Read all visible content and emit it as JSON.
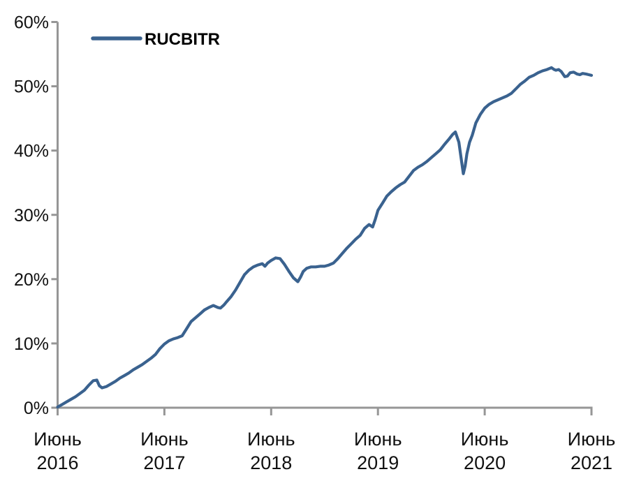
{
  "chart_data": {
    "type": "line",
    "title": "",
    "legend": {
      "label": "RUCBITR",
      "position": "top-left-inside"
    },
    "axis_color": "#969696",
    "grid": false,
    "x_axis": {
      "unit": "months since June 2016",
      "range_months": [
        0,
        60
      ],
      "ticks": [
        {
          "month": 0,
          "label_line1": "Июнь",
          "label_line2": "2016"
        },
        {
          "month": 12,
          "label_line1": "Июнь",
          "label_line2": "2017"
        },
        {
          "month": 24,
          "label_line1": "Июнь",
          "label_line2": "2018"
        },
        {
          "month": 36,
          "label_line1": "Июнь",
          "label_line2": "2019"
        },
        {
          "month": 48,
          "label_line1": "Июнь",
          "label_line2": "2020"
        },
        {
          "month": 60,
          "label_line1": "Июнь",
          "label_line2": "2021"
        }
      ]
    },
    "y_axis": {
      "tick_labels": [
        "0%",
        "10%",
        "20%",
        "30%",
        "40%",
        "50%",
        "60%"
      ],
      "tick_values": [
        0,
        10,
        20,
        30,
        40,
        50,
        60
      ],
      "range": [
        0,
        60
      ]
    },
    "series": [
      {
        "name": "RUCBITR",
        "color": "#3A628F",
        "points": [
          [
            0,
            0.1
          ],
          [
            0.5,
            0.5
          ],
          [
            1,
            0.9
          ],
          [
            1.5,
            1.3
          ],
          [
            2,
            1.7
          ],
          [
            2.5,
            2.2
          ],
          [
            3,
            2.7
          ],
          [
            3.5,
            3.5
          ],
          [
            4,
            4.2
          ],
          [
            4.4,
            4.3
          ],
          [
            4.7,
            3.4
          ],
          [
            5,
            3.1
          ],
          [
            5.5,
            3.3
          ],
          [
            6,
            3.7
          ],
          [
            6.5,
            4.1
          ],
          [
            7,
            4.6
          ],
          [
            7.5,
            5.0
          ],
          [
            8,
            5.4
          ],
          [
            8.5,
            5.9
          ],
          [
            9,
            6.3
          ],
          [
            9.5,
            6.7
          ],
          [
            10,
            7.2
          ],
          [
            10.5,
            7.7
          ],
          [
            11,
            8.3
          ],
          [
            11.5,
            9.2
          ],
          [
            12,
            9.9
          ],
          [
            12.5,
            10.4
          ],
          [
            13,
            10.7
          ],
          [
            13.5,
            10.9
          ],
          [
            14,
            11.2
          ],
          [
            14.5,
            12.3
          ],
          [
            15,
            13.4
          ],
          [
            15.5,
            14.0
          ],
          [
            16,
            14.6
          ],
          [
            16.5,
            15.2
          ],
          [
            17,
            15.6
          ],
          [
            17.5,
            15.9
          ],
          [
            18,
            15.6
          ],
          [
            18.3,
            15.5
          ],
          [
            18.7,
            16.0
          ],
          [
            19,
            16.5
          ],
          [
            19.5,
            17.3
          ],
          [
            20,
            18.3
          ],
          [
            20.5,
            19.5
          ],
          [
            21,
            20.7
          ],
          [
            21.5,
            21.4
          ],
          [
            22,
            21.9
          ],
          [
            22.5,
            22.2
          ],
          [
            23,
            22.4
          ],
          [
            23.3,
            22.0
          ],
          [
            23.6,
            22.5
          ],
          [
            24,
            22.9
          ],
          [
            24.5,
            23.3
          ],
          [
            25,
            23.2
          ],
          [
            25.5,
            22.3
          ],
          [
            26,
            21.2
          ],
          [
            26.5,
            20.2
          ],
          [
            27,
            19.6
          ],
          [
            27.3,
            20.3
          ],
          [
            27.6,
            21.2
          ],
          [
            28,
            21.7
          ],
          [
            28.5,
            21.9
          ],
          [
            29,
            21.9
          ],
          [
            29.5,
            22.0
          ],
          [
            30,
            22.0
          ],
          [
            30.5,
            22.2
          ],
          [
            31,
            22.5
          ],
          [
            31.5,
            23.2
          ],
          [
            32,
            24.0
          ],
          [
            32.5,
            24.8
          ],
          [
            33,
            25.5
          ],
          [
            33.5,
            26.2
          ],
          [
            34,
            26.8
          ],
          [
            34.5,
            27.9
          ],
          [
            35,
            28.5
          ],
          [
            35.4,
            28.1
          ],
          [
            35.7,
            29.3
          ],
          [
            36,
            30.7
          ],
          [
            36.5,
            31.8
          ],
          [
            37,
            32.9
          ],
          [
            37.5,
            33.6
          ],
          [
            38,
            34.2
          ],
          [
            38.5,
            34.7
          ],
          [
            39,
            35.1
          ],
          [
            39.5,
            36.0
          ],
          [
            40,
            36.9
          ],
          [
            40.5,
            37.4
          ],
          [
            41,
            37.8
          ],
          [
            41.5,
            38.3
          ],
          [
            42,
            38.9
          ],
          [
            42.5,
            39.5
          ],
          [
            43,
            40.1
          ],
          [
            43.5,
            41.0
          ],
          [
            44,
            41.8
          ],
          [
            44.4,
            42.5
          ],
          [
            44.7,
            42.9
          ],
          [
            45.1,
            41.3
          ],
          [
            45.4,
            38.3
          ],
          [
            45.6,
            36.4
          ],
          [
            45.8,
            37.6
          ],
          [
            46,
            39.5
          ],
          [
            46.3,
            41.3
          ],
          [
            46.6,
            42.4
          ],
          [
            47,
            44.3
          ],
          [
            47.5,
            45.6
          ],
          [
            48,
            46.6
          ],
          [
            48.5,
            47.2
          ],
          [
            49,
            47.6
          ],
          [
            49.5,
            47.9
          ],
          [
            50,
            48.2
          ],
          [
            50.5,
            48.5
          ],
          [
            51,
            48.9
          ],
          [
            51.5,
            49.6
          ],
          [
            52,
            50.3
          ],
          [
            52.5,
            50.8
          ],
          [
            53,
            51.4
          ],
          [
            53.5,
            51.7
          ],
          [
            54,
            52.1
          ],
          [
            54.5,
            52.4
          ],
          [
            55,
            52.6
          ],
          [
            55.5,
            52.9
          ],
          [
            55.8,
            52.6
          ],
          [
            56,
            52.5
          ],
          [
            56.3,
            52.6
          ],
          [
            56.6,
            52.3
          ],
          [
            57,
            51.5
          ],
          [
            57.3,
            51.6
          ],
          [
            57.6,
            52.1
          ],
          [
            58,
            52.2
          ],
          [
            58.4,
            51.9
          ],
          [
            58.7,
            51.8
          ],
          [
            59,
            52.0
          ],
          [
            59.4,
            51.9
          ],
          [
            59.7,
            51.8
          ],
          [
            60,
            51.7
          ]
        ]
      }
    ]
  }
}
